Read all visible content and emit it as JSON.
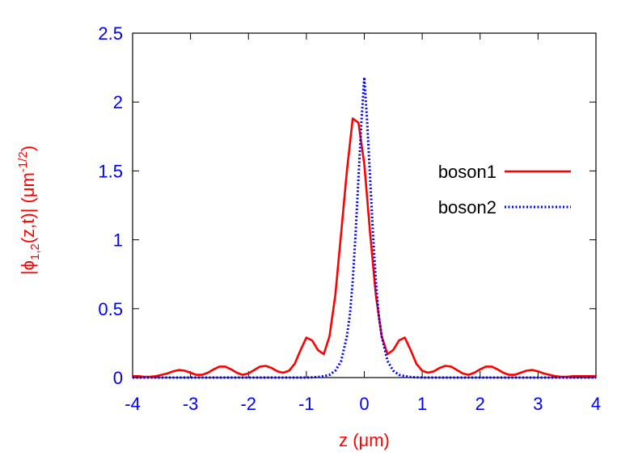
{
  "chart_data": {
    "type": "line",
    "xlabel": "z (μm)",
    "ylabel": "|ϕ1,2(z,t)| (μm-1/2)",
    "ylabel_parts": {
      "pre": "|ϕ",
      "sub": "1,2",
      "mid": "(z,t)| (μm",
      "sup": "-1/2",
      "post": ")"
    },
    "xlim": [
      -4,
      4
    ],
    "ylim": [
      0,
      2.5
    ],
    "xticks": [
      "-4",
      "-3",
      "-2",
      "-1",
      "0",
      "1",
      "2",
      "3",
      "4"
    ],
    "yticks": [
      "0",
      "0.5",
      "1",
      "1.5",
      "2",
      "2.5"
    ],
    "grid": false,
    "legend_position": "right",
    "colors": {
      "tick_labels": "#0000ff",
      "axis_labels": "#ff0000",
      "axes": "#000000"
    },
    "series": [
      {
        "name": "boson1",
        "color": "#ff0000",
        "style": "solid",
        "x": [
          -4.0,
          -3.9,
          -3.8,
          -3.7,
          -3.6,
          -3.5,
          -3.4,
          -3.3,
          -3.2,
          -3.1,
          -3.0,
          -2.9,
          -2.8,
          -2.7,
          -2.6,
          -2.5,
          -2.4,
          -2.3,
          -2.2,
          -2.1,
          -2.0,
          -1.9,
          -1.8,
          -1.7,
          -1.6,
          -1.5,
          -1.4,
          -1.3,
          -1.2,
          -1.1,
          -1.0,
          -0.9,
          -0.8,
          -0.7,
          -0.6,
          -0.5,
          -0.4,
          -0.3,
          -0.2,
          -0.1,
          0.0,
          0.1,
          0.2,
          0.3,
          0.4,
          0.5,
          0.6,
          0.7,
          0.8,
          0.9,
          1.0,
          1.1,
          1.2,
          1.3,
          1.4,
          1.5,
          1.6,
          1.7,
          1.8,
          1.9,
          2.0,
          2.1,
          2.2,
          2.3,
          2.4,
          2.5,
          2.6,
          2.7,
          2.8,
          2.9,
          3.0,
          3.1,
          3.2,
          3.3,
          3.4,
          3.5,
          3.6,
          3.7,
          3.8,
          3.9,
          4.0
        ],
        "y": [
          0.01,
          0.01,
          0.005,
          0.005,
          0.01,
          0.02,
          0.03,
          0.045,
          0.055,
          0.05,
          0.035,
          0.02,
          0.02,
          0.035,
          0.06,
          0.08,
          0.08,
          0.06,
          0.035,
          0.02,
          0.03,
          0.055,
          0.08,
          0.085,
          0.07,
          0.045,
          0.035,
          0.05,
          0.1,
          0.2,
          0.29,
          0.27,
          0.2,
          0.17,
          0.3,
          0.6,
          1.05,
          1.5,
          1.88,
          1.85,
          1.55,
          1.05,
          0.6,
          0.3,
          0.17,
          0.2,
          0.27,
          0.29,
          0.2,
          0.1,
          0.05,
          0.035,
          0.045,
          0.07,
          0.085,
          0.08,
          0.055,
          0.03,
          0.02,
          0.035,
          0.06,
          0.08,
          0.08,
          0.06,
          0.035,
          0.02,
          0.02,
          0.035,
          0.05,
          0.055,
          0.045,
          0.03,
          0.02,
          0.01,
          0.005,
          0.005,
          0.01,
          0.01,
          0.01,
          0.01,
          0.01
        ]
      },
      {
        "name": "boson2",
        "color": "#0000ff",
        "style": "dotted",
        "x": [
          -4.0,
          -1.2,
          -1.0,
          -0.9,
          -0.8,
          -0.7,
          -0.6,
          -0.5,
          -0.4,
          -0.3,
          -0.25,
          -0.2,
          -0.15,
          -0.1,
          -0.05,
          0.0,
          0.05,
          0.1,
          0.15,
          0.2,
          0.25,
          0.3,
          0.4,
          0.5,
          0.6,
          0.7,
          0.8,
          0.9,
          1.0,
          1.2,
          4.0
        ],
        "y": [
          0.0,
          0.0,
          0.0,
          0.002,
          0.004,
          0.01,
          0.02,
          0.05,
          0.12,
          0.3,
          0.45,
          0.7,
          1.05,
          1.45,
          1.85,
          2.18,
          1.85,
          1.45,
          1.05,
          0.7,
          0.45,
          0.3,
          0.12,
          0.05,
          0.02,
          0.01,
          0.004,
          0.002,
          0.0,
          0.0,
          0.0
        ]
      }
    ]
  }
}
